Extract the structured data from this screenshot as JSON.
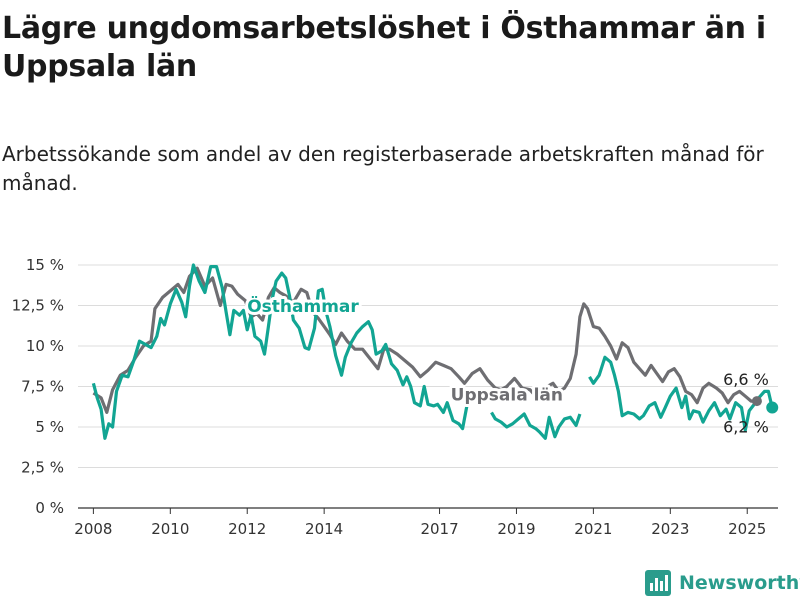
{
  "header": {
    "title": "Lägre ungdomsarbetslöshet i Östhammar än i Uppsala län",
    "subtitle": "Arbetssökande som andel av den registerbaserade arbetskraften månad för månad."
  },
  "brand": {
    "name": "Newsworthy",
    "icon": "bar-chart-logo-icon",
    "color": "#2a9c8c"
  },
  "chart_data": {
    "type": "line",
    "x_ticks": [
      {
        "year": 2008,
        "label": "2008"
      },
      {
        "year": 2010,
        "label": "2010"
      },
      {
        "year": 2012,
        "label": "2012"
      },
      {
        "year": 2014,
        "label": "2014"
      },
      {
        "year": 2017,
        "label": "2017"
      },
      {
        "year": 2019,
        "label": "2019"
      },
      {
        "year": 2021,
        "label": "2021"
      },
      {
        "year": 2023,
        "label": "2023"
      },
      {
        "year": 2025,
        "label": "2025"
      }
    ],
    "y_ticks": [
      {
        "value": 0,
        "label": "0 %"
      },
      {
        "value": 2.5,
        "label": "2,5 %"
      },
      {
        "value": 5,
        "label": "5 %"
      },
      {
        "value": 7.5,
        "label": "7,5 %"
      },
      {
        "value": 10,
        "label": "10 %"
      },
      {
        "value": 12.5,
        "label": "12,5 %"
      },
      {
        "value": 15,
        "label": "15 %"
      }
    ],
    "ylim": [
      0,
      15
    ],
    "xlim": [
      2007.6,
      2025.8
    ],
    "grid": "horizontal",
    "series": [
      {
        "name": "Uppsala län",
        "color": "#6e6e72",
        "end_label": "6,6 %",
        "points": [
          [
            2008.0,
            7.1
          ],
          [
            2008.2,
            6.8
          ],
          [
            2008.35,
            5.9
          ],
          [
            2008.5,
            7.3
          ],
          [
            2008.7,
            8.2
          ],
          [
            2008.9,
            8.5
          ],
          [
            2009.1,
            9.3
          ],
          [
            2009.3,
            10.0
          ],
          [
            2009.5,
            10.3
          ],
          [
            2009.6,
            12.3
          ],
          [
            2009.8,
            13.0
          ],
          [
            2010.0,
            13.4
          ],
          [
            2010.2,
            13.8
          ],
          [
            2010.35,
            13.3
          ],
          [
            2010.5,
            14.3
          ],
          [
            2010.7,
            14.8
          ],
          [
            2010.9,
            13.7
          ],
          [
            2011.1,
            14.2
          ],
          [
            2011.3,
            12.5
          ],
          [
            2011.45,
            13.8
          ],
          [
            2011.6,
            13.7
          ],
          [
            2011.75,
            13.2
          ],
          [
            2011.95,
            12.8
          ],
          [
            2012.1,
            11.8
          ],
          [
            2012.25,
            12.0
          ],
          [
            2012.4,
            11.6
          ],
          [
            2012.55,
            13.0
          ],
          [
            2012.7,
            13.6
          ],
          [
            2012.85,
            13.3
          ],
          [
            2013.0,
            13.1
          ],
          [
            2013.2,
            12.7
          ],
          [
            2013.4,
            13.5
          ],
          [
            2013.55,
            13.3
          ],
          [
            2013.7,
            12.1
          ],
          [
            2013.85,
            11.7
          ],
          [
            2014.0,
            11.2
          ],
          [
            2014.15,
            10.7
          ],
          [
            2014.3,
            10.1
          ],
          [
            2014.45,
            10.8
          ],
          [
            2014.6,
            10.3
          ],
          [
            2014.8,
            9.8
          ],
          [
            2015.0,
            9.8
          ],
          [
            2015.2,
            9.2
          ],
          [
            2015.4,
            8.6
          ],
          [
            2015.55,
            9.8
          ],
          [
            2015.7,
            9.8
          ],
          [
            2015.9,
            9.5
          ],
          [
            2016.1,
            9.1
          ],
          [
            2016.3,
            8.7
          ],
          [
            2016.5,
            8.1
          ],
          [
            2016.7,
            8.5
          ],
          [
            2016.9,
            9.0
          ],
          [
            2017.1,
            8.8
          ],
          [
            2017.3,
            8.6
          ],
          [
            2017.5,
            8.1
          ],
          [
            2017.65,
            7.7
          ],
          [
            2017.85,
            8.3
          ],
          [
            2018.05,
            8.6
          ],
          [
            2018.25,
            7.9
          ],
          [
            2018.45,
            7.4
          ],
          [
            2018.6,
            7.3
          ],
          [
            2018.75,
            7.5
          ],
          [
            2018.95,
            8.0
          ],
          [
            2019.15,
            7.4
          ],
          [
            2019.35,
            7.3
          ],
          [
            2019.5,
            6.9
          ],
          [
            2019.65,
            7.1
          ],
          [
            2019.8,
            7.5
          ],
          [
            2019.95,
            7.7
          ],
          [
            2020.1,
            7.2
          ],
          [
            2020.25,
            7.4
          ],
          [
            2020.4,
            8.0
          ],
          [
            2020.55,
            9.5
          ],
          [
            2020.65,
            11.8
          ],
          [
            2020.75,
            12.6
          ],
          [
            2020.85,
            12.3
          ],
          [
            2021.0,
            11.2
          ],
          [
            2021.15,
            11.1
          ],
          [
            2021.3,
            10.6
          ],
          [
            2021.45,
            10.0
          ],
          [
            2021.6,
            9.2
          ],
          [
            2021.75,
            10.2
          ],
          [
            2021.9,
            9.9
          ],
          [
            2022.05,
            9.0
          ],
          [
            2022.2,
            8.6
          ],
          [
            2022.35,
            8.2
          ],
          [
            2022.5,
            8.8
          ],
          [
            2022.65,
            8.3
          ],
          [
            2022.8,
            7.8
          ],
          [
            2022.95,
            8.4
          ],
          [
            2023.1,
            8.6
          ],
          [
            2023.25,
            8.1
          ],
          [
            2023.4,
            7.2
          ],
          [
            2023.55,
            7.0
          ],
          [
            2023.7,
            6.5
          ],
          [
            2023.85,
            7.4
          ],
          [
            2024.0,
            7.7
          ],
          [
            2024.2,
            7.4
          ],
          [
            2024.35,
            7.1
          ],
          [
            2024.5,
            6.5
          ],
          [
            2024.65,
            7.0
          ],
          [
            2024.8,
            7.2
          ],
          [
            2024.95,
            6.9
          ],
          [
            2025.1,
            6.6
          ],
          [
            2025.2,
            6.6
          ]
        ]
      },
      {
        "name": "Östhammar",
        "color": "#12a593",
        "end_label": "6,2 %",
        "points": [
          [
            2008.0,
            7.7
          ],
          [
            2008.1,
            6.8
          ],
          [
            2008.2,
            6.1
          ],
          [
            2008.3,
            4.3
          ],
          [
            2008.4,
            5.2
          ],
          [
            2008.5,
            5.0
          ],
          [
            2008.6,
            7.2
          ],
          [
            2008.75,
            8.2
          ],
          [
            2008.9,
            8.1
          ],
          [
            2009.05,
            9.1
          ],
          [
            2009.2,
            10.3
          ],
          [
            2009.35,
            10.1
          ],
          [
            2009.5,
            9.9
          ],
          [
            2009.65,
            10.6
          ],
          [
            2009.75,
            11.7
          ],
          [
            2009.85,
            11.3
          ],
          [
            2010.0,
            12.6
          ],
          [
            2010.15,
            13.5
          ],
          [
            2010.3,
            12.7
          ],
          [
            2010.4,
            11.8
          ],
          [
            2010.5,
            13.7
          ],
          [
            2010.6,
            15.0
          ],
          [
            2010.75,
            14.0
          ],
          [
            2010.9,
            13.3
          ],
          [
            2011.05,
            14.9
          ],
          [
            2011.2,
            14.9
          ],
          [
            2011.35,
            13.6
          ],
          [
            2011.45,
            12.1
          ],
          [
            2011.55,
            10.7
          ],
          [
            2011.65,
            12.2
          ],
          [
            2011.8,
            11.9
          ],
          [
            2011.9,
            12.2
          ],
          [
            2012.0,
            11.0
          ],
          [
            2012.1,
            11.9
          ],
          [
            2012.2,
            10.6
          ],
          [
            2012.35,
            10.3
          ],
          [
            2012.45,
            9.5
          ],
          [
            2012.55,
            11.2
          ],
          [
            2012.65,
            12.9
          ],
          [
            2012.75,
            14.0
          ],
          [
            2012.9,
            14.5
          ],
          [
            2013.0,
            14.2
          ],
          [
            2013.1,
            13.1
          ],
          [
            2013.2,
            11.6
          ],
          [
            2013.35,
            11.1
          ],
          [
            2013.5,
            9.9
          ],
          [
            2013.6,
            9.8
          ],
          [
            2013.75,
            11.1
          ],
          [
            2013.85,
            13.4
          ],
          [
            2013.95,
            13.5
          ],
          [
            2014.05,
            12.1
          ],
          [
            2014.15,
            11.2
          ],
          [
            2014.3,
            9.4
          ],
          [
            2014.45,
            8.2
          ],
          [
            2014.55,
            9.3
          ],
          [
            2014.7,
            10.2
          ],
          [
            2014.85,
            10.8
          ],
          [
            2015.0,
            11.2
          ],
          [
            2015.15,
            11.5
          ],
          [
            2015.25,
            11.0
          ],
          [
            2015.35,
            9.5
          ],
          [
            2015.5,
            9.7
          ],
          [
            2015.6,
            10.1
          ],
          [
            2015.75,
            8.9
          ],
          [
            2015.9,
            8.5
          ],
          [
            2016.05,
            7.6
          ],
          [
            2016.15,
            8.1
          ],
          [
            2016.25,
            7.5
          ],
          [
            2016.35,
            6.5
          ],
          [
            2016.5,
            6.3
          ],
          [
            2016.6,
            7.5
          ],
          [
            2016.7,
            6.4
          ],
          [
            2016.85,
            6.3
          ],
          [
            2016.95,
            6.4
          ],
          [
            2017.1,
            5.9
          ],
          [
            2017.2,
            6.5
          ],
          [
            2017.35,
            5.4
          ],
          [
            2017.5,
            5.2
          ],
          [
            2017.6,
            4.9
          ],
          [
            2017.75,
            6.8
          ]
        ],
        "points2": [
          [
            2018.35,
            5.9
          ],
          [
            2018.45,
            5.5
          ],
          [
            2018.6,
            5.3
          ],
          [
            2018.75,
            5.0
          ],
          [
            2018.9,
            5.2
          ],
          [
            2019.05,
            5.5
          ],
          [
            2019.2,
            5.8
          ],
          [
            2019.35,
            5.1
          ],
          [
            2019.5,
            4.9
          ],
          [
            2019.6,
            4.7
          ],
          [
            2019.75,
            4.3
          ],
          [
            2019.85,
            5.6
          ],
          [
            2020.0,
            4.4
          ],
          [
            2020.1,
            5.0
          ],
          [
            2020.25,
            5.5
          ],
          [
            2020.4,
            5.6
          ],
          [
            2020.55,
            5.1
          ],
          [
            2020.65,
            5.8
          ]
        ],
        "points3": [
          [
            2020.9,
            8.1
          ],
          [
            2021.0,
            7.7
          ],
          [
            2021.15,
            8.2
          ],
          [
            2021.3,
            9.3
          ],
          [
            2021.45,
            9.0
          ],
          [
            2021.55,
            8.2
          ],
          [
            2021.65,
            7.2
          ],
          [
            2021.75,
            5.7
          ],
          [
            2021.9,
            5.9
          ],
          [
            2022.05,
            5.8
          ],
          [
            2022.2,
            5.5
          ],
          [
            2022.3,
            5.7
          ],
          [
            2022.45,
            6.3
          ],
          [
            2022.6,
            6.5
          ],
          [
            2022.75,
            5.6
          ],
          [
            2022.85,
            6.1
          ],
          [
            2023.0,
            6.9
          ],
          [
            2023.15,
            7.4
          ],
          [
            2023.3,
            6.2
          ],
          [
            2023.4,
            6.9
          ],
          [
            2023.5,
            5.5
          ],
          [
            2023.6,
            6.0
          ],
          [
            2023.75,
            5.9
          ],
          [
            2023.85,
            5.3
          ],
          [
            2024.0,
            6.0
          ],
          [
            2024.15,
            6.5
          ],
          [
            2024.3,
            5.7
          ],
          [
            2024.45,
            6.1
          ],
          [
            2024.55,
            5.5
          ],
          [
            2024.7,
            6.5
          ],
          [
            2024.85,
            6.2
          ],
          [
            2024.95,
            4.8
          ],
          [
            2025.05,
            6.0
          ],
          [
            2025.15,
            6.3
          ],
          [
            2025.3,
            6.8
          ],
          [
            2025.45,
            7.2
          ],
          [
            2025.55,
            7.2
          ],
          [
            2025.65,
            6.2
          ]
        ]
      }
    ],
    "annotations": [
      {
        "text": "Östhammar",
        "series": 1
      },
      {
        "text": "Uppsala län",
        "series": 0
      }
    ]
  }
}
